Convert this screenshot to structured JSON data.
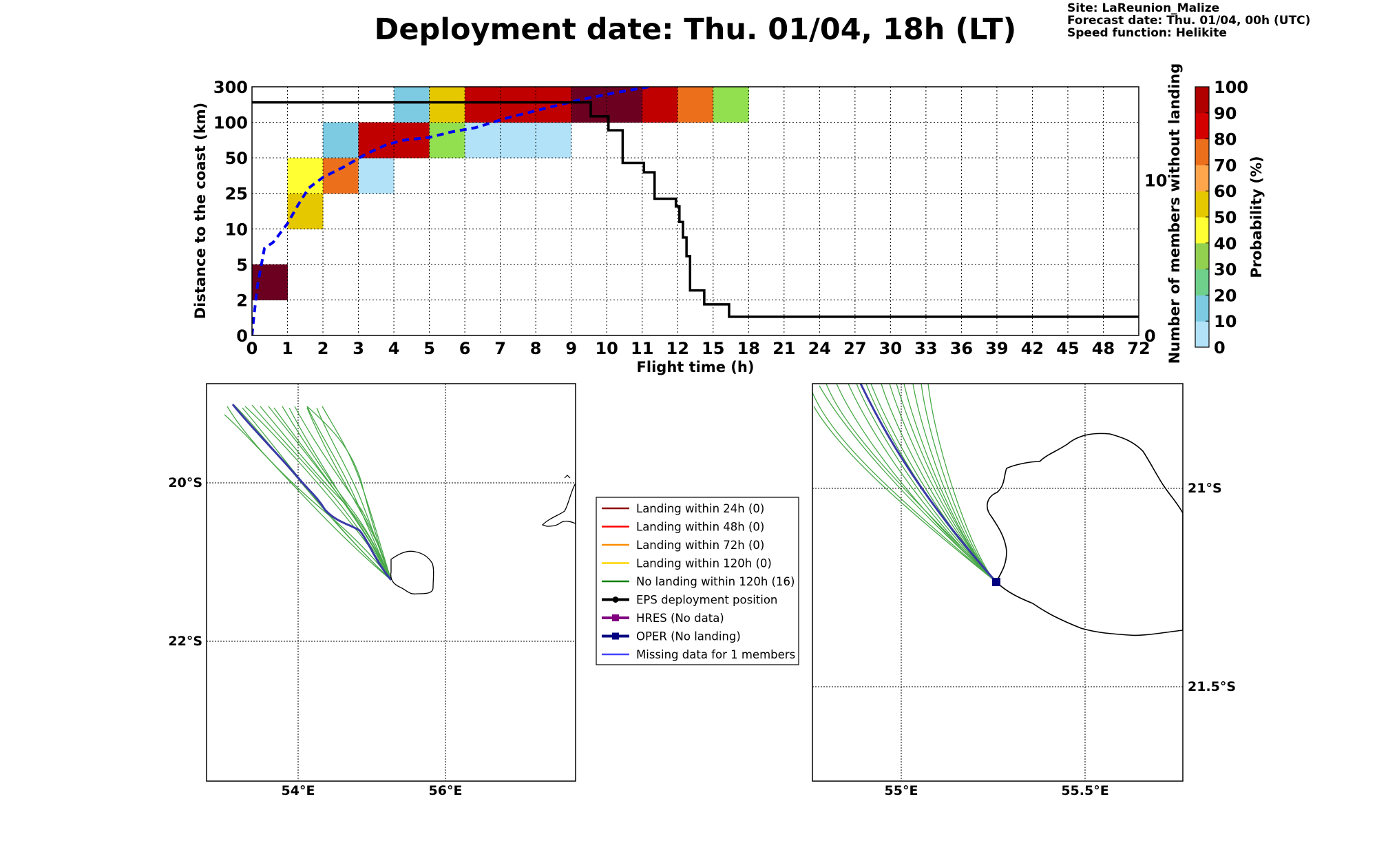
{
  "header": {
    "title": "Deployment date: Thu. 01/04, 18h (LT)",
    "site": "Site: LaReunion_Malize",
    "forecast_date": "Forecast date: Thu. 01/04, 00h (UTC)",
    "speed_function": "Speed function: Helikite"
  },
  "chart_data": [
    {
      "type": "heatmap",
      "xlabel": "Flight time (h)",
      "ylabel": "Distance to the coast (km)",
      "y2label": "Number of members without landing",
      "colorbar_label": "Probability (%)",
      "x_ticks": [
        "0",
        "1",
        "2",
        "3",
        "4",
        "5",
        "6",
        "7",
        "8",
        "9",
        "10",
        "11",
        "12",
        "15",
        "18",
        "21",
        "24",
        "27",
        "30",
        "33",
        "36",
        "39",
        "42",
        "45",
        "48",
        "72"
      ],
      "y_ticks": [
        "0",
        "2",
        "5",
        "10",
        "25",
        "50",
        "100",
        "300"
      ],
      "y2_ticks": [
        "0",
        "10"
      ],
      "y2_range": [
        0,
        16
      ],
      "colorbar_ticks": [
        "0",
        "10",
        "20",
        "30",
        "40",
        "50",
        "60",
        "70",
        "80",
        "90",
        "100"
      ],
      "colorbar_colors": [
        "#b2e2f8",
        "#7ccbe3",
        "#6fd08c",
        "#92d050",
        "#ffff33",
        "#e6c800",
        "#ffa64d",
        "#ec6f1c",
        "#d40000",
        "#b00000"
      ],
      "cells": [
        {
          "x": 0,
          "y": 1,
          "color": "#6b0020"
        },
        {
          "x": 1,
          "y": 3,
          "color": "#e6c800"
        },
        {
          "x": 1,
          "y": 4,
          "color": "#ffff33"
        },
        {
          "x": 2,
          "y": 4,
          "color": "#ec6f1c"
        },
        {
          "x": 2,
          "y": 5,
          "color": "#7ccbe3"
        },
        {
          "x": 3,
          "y": 4,
          "color": "#b2e2f8"
        },
        {
          "x": 3,
          "y": 5,
          "color": "#c00000"
        },
        {
          "x": 4,
          "y": 5,
          "color": "#c00000"
        },
        {
          "x": 4,
          "y": 6,
          "color": "#7ccbe3"
        },
        {
          "x": 5,
          "y": 5,
          "color": "#92e050"
        },
        {
          "x": 5,
          "y": 6,
          "color": "#e6c800"
        },
        {
          "x": 6,
          "y": 5,
          "color": "#b2e2f8"
        },
        {
          "x": 7,
          "y": 5,
          "color": "#b2e2f8"
        },
        {
          "x": 8,
          "y": 5,
          "color": "#b2e2f8"
        },
        {
          "x": 6,
          "y": 6,
          "color": "#c00000"
        },
        {
          "x": 7,
          "y": 6,
          "color": "#c00000"
        },
        {
          "x": 8,
          "y": 6,
          "color": "#c00000"
        },
        {
          "x": 9,
          "y": 6,
          "color": "#6b0020"
        },
        {
          "x": 10,
          "y": 6,
          "color": "#6b0020"
        },
        {
          "x": 11,
          "y": 6,
          "color": "#c00000"
        },
        {
          "x": 12,
          "y": 6,
          "color": "#ec6f1c"
        },
        {
          "x": 13,
          "y": 6,
          "color": "#92e050"
        }
      ],
      "median_distance_curve": {
        "color": "#0000ee",
        "points": [
          [
            0,
            0
          ],
          [
            0.05,
            2
          ],
          [
            0.15,
            5.5
          ],
          [
            0.35,
            9.8
          ],
          [
            0.6,
            10.5
          ],
          [
            1.0,
            12.6
          ],
          [
            1.3,
            14.7
          ],
          [
            1.6,
            16.6
          ],
          [
            2.0,
            17.8
          ],
          [
            2.6,
            19.0
          ],
          [
            3.2,
            20.4
          ],
          [
            3.8,
            21.5
          ],
          [
            4.3,
            22.0
          ],
          [
            5.0,
            22.3
          ],
          [
            5.6,
            22.9
          ],
          [
            6.3,
            23.4
          ],
          [
            7.2,
            24.5
          ],
          [
            8.2,
            25.5
          ],
          [
            9.2,
            26.5
          ],
          [
            10.2,
            27.3
          ],
          [
            11.2,
            28
          ]
        ]
      },
      "members_without_landing": {
        "color": "#000000",
        "points": [
          [
            0,
            15.0
          ],
          [
            9.55,
            15.0
          ],
          [
            9.55,
            14.1
          ],
          [
            10.05,
            14.1
          ],
          [
            10.05,
            13.2
          ],
          [
            10.45,
            13.2
          ],
          [
            10.45,
            11.1
          ],
          [
            11.05,
            11.1
          ],
          [
            11.05,
            10.5
          ],
          [
            11.35,
            10.5
          ],
          [
            11.35,
            8.8
          ],
          [
            11.95,
            8.8
          ],
          [
            11.95,
            8.3
          ],
          [
            12.05,
            8.3
          ],
          [
            12.05,
            7.3
          ],
          [
            12.15,
            7.3
          ],
          [
            12.15,
            6.3
          ],
          [
            12.25,
            6.3
          ],
          [
            12.25,
            5.1
          ],
          [
            12.35,
            5.1
          ],
          [
            12.35,
            2.9
          ],
          [
            12.75,
            2.9
          ],
          [
            12.75,
            2.0
          ],
          [
            13.45,
            2.0
          ],
          [
            13.45,
            1.2
          ],
          [
            25,
            1.2
          ]
        ]
      }
    }
  ],
  "maps": {
    "left": {
      "lat_labels": [
        "20°S",
        "22°S"
      ],
      "lon_labels": [
        "54°E",
        "56°E"
      ]
    },
    "right": {
      "lat_labels": [
        "21°S",
        "21.5°S"
      ],
      "lon_labels": [
        "55°E",
        "55.5°E"
      ]
    }
  },
  "legend": {
    "items": [
      {
        "label": "Landing within 24h (0)",
        "color": "#8b0000",
        "marker": "none"
      },
      {
        "label": "Landing within 48h (0)",
        "color": "#ff0000",
        "marker": "none"
      },
      {
        "label": "Landing within 72h (0)",
        "color": "#ff8c00",
        "marker": "none"
      },
      {
        "label": "Landing within 120h (0)",
        "color": "#ffd700",
        "marker": "none"
      },
      {
        "label": "No landing within 120h (16)",
        "color": "#008000",
        "marker": "none"
      },
      {
        "label": "EPS deployment position",
        "color": "#000000",
        "marker": "circle"
      },
      {
        "label": "HRES (No data)",
        "color": "#800080",
        "marker": "square"
      },
      {
        "label": "OPER (No landing)",
        "color": "#000080",
        "marker": "square"
      },
      {
        "label": "Missing data for 1 members",
        "color": "#4444ff",
        "marker": "none"
      }
    ]
  }
}
